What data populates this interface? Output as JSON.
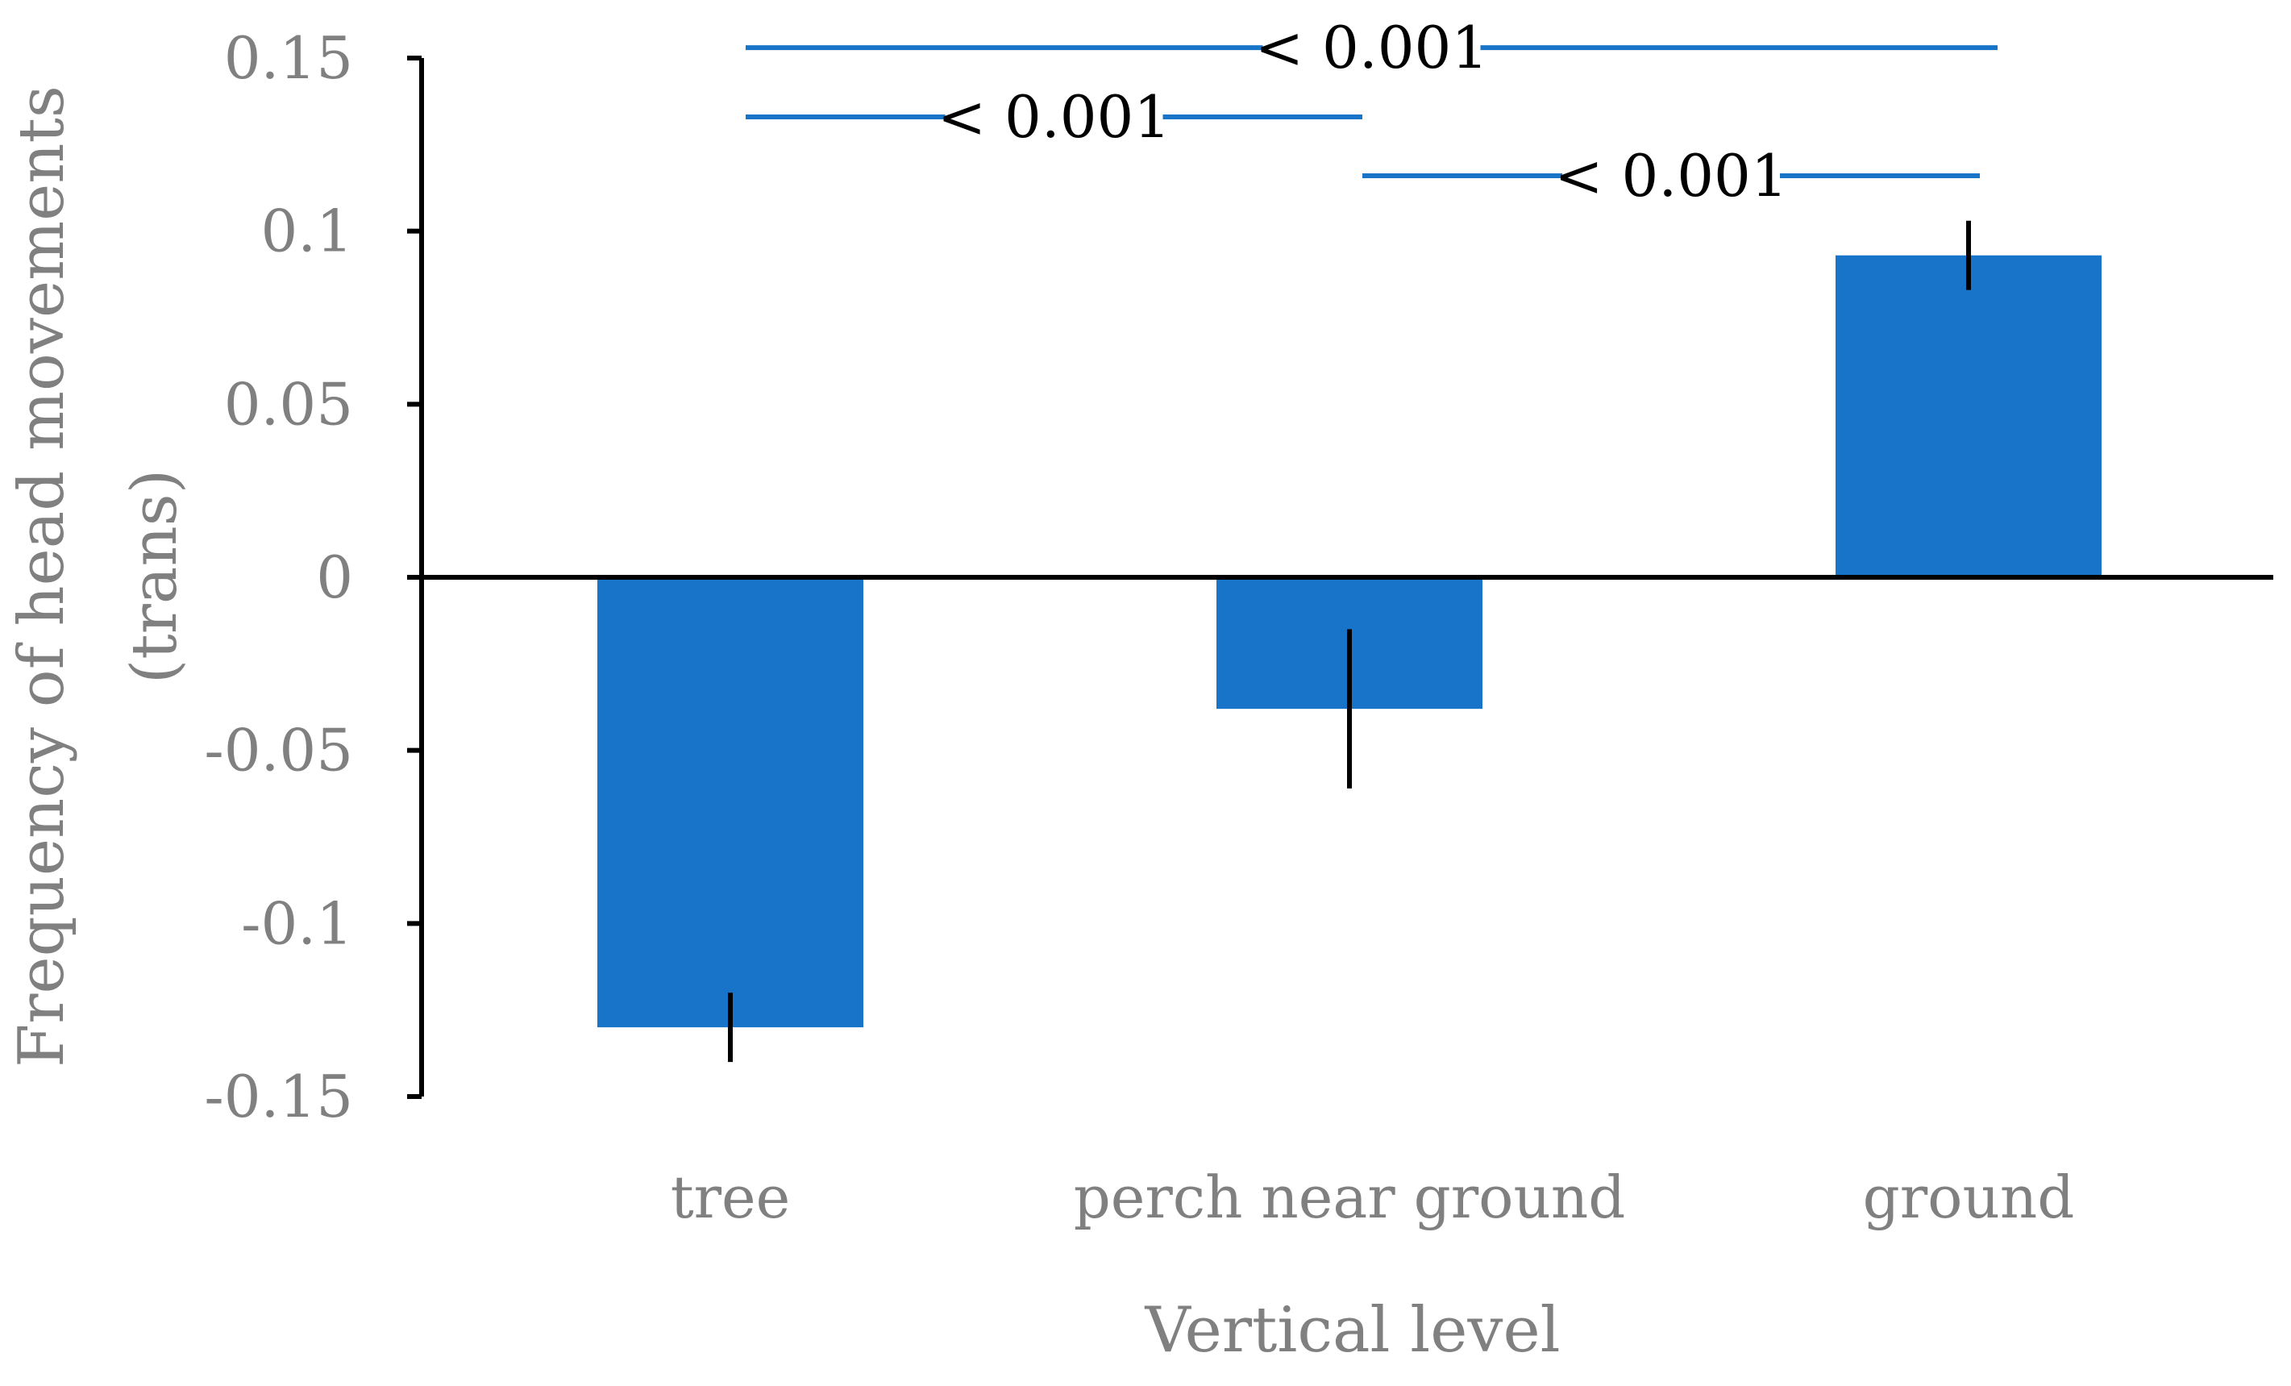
{
  "colors": {
    "bar": "#1874C8",
    "sig_line": "#1874C8",
    "axis": "#000000",
    "tick_label": "#808080",
    "sig_text": "#000000"
  },
  "chart_data": {
    "type": "bar",
    "title": "",
    "xlabel": "Vertical level",
    "ylabel_lines": [
      "Frequency of head movements",
      "(trans)"
    ],
    "categories": [
      "tree",
      "perch near ground",
      "ground"
    ],
    "series": [
      {
        "values": [
          -0.13,
          -0.038,
          0.093
        ],
        "error_low": [
          -0.14,
          -0.061,
          0.083
        ],
        "error_high": [
          -0.12,
          -0.015,
          0.103
        ]
      }
    ],
    "ylim": [
      -0.15,
      0.15
    ],
    "yticks": [
      0.15,
      0.1,
      0.05,
      0,
      -0.05,
      -0.1,
      -0.15
    ],
    "ytick_labels": [
      "0.15",
      "0.1",
      "0.05",
      "0",
      "-0.05",
      "-0.1",
      "-0.15"
    ],
    "grid": false,
    "legend": "none",
    "significance": [
      {
        "from": 0,
        "to": 2,
        "y": 0.153,
        "label": "< 0.001"
      },
      {
        "from": 0,
        "to": 1,
        "y": 0.133,
        "label": "< 0.001"
      },
      {
        "from": 1,
        "to": 2,
        "y": 0.116,
        "label": "< 0.001"
      }
    ]
  }
}
